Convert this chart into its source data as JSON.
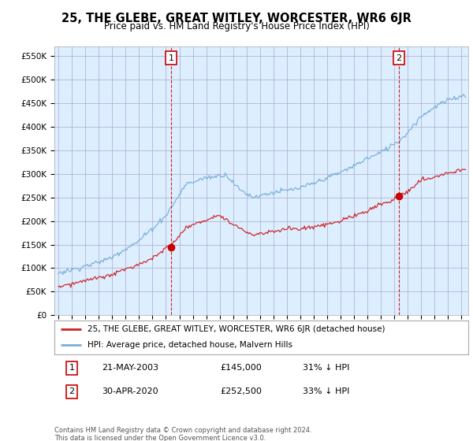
{
  "title": "25, THE GLEBE, GREAT WITLEY, WORCESTER, WR6 6JR",
  "subtitle": "Price paid vs. HM Land Registry's House Price Index (HPI)",
  "ylabel_ticks": [
    "£0",
    "£50K",
    "£100K",
    "£150K",
    "£200K",
    "£250K",
    "£300K",
    "£350K",
    "£400K",
    "£450K",
    "£500K",
    "£550K"
  ],
  "ytick_values": [
    0,
    50000,
    100000,
    150000,
    200000,
    250000,
    300000,
    350000,
    400000,
    450000,
    500000,
    550000
  ],
  "ylim": [
    0,
    570000
  ],
  "xlim_start": 1994.7,
  "xlim_end": 2025.5,
  "hpi_color": "#7aaed6",
  "price_color": "#cc2222",
  "chart_bg": "#ddeeff",
  "marker1_date": 2003.38,
  "marker1_value": 145000,
  "marker2_date": 2020.33,
  "marker2_value": 252500,
  "transaction1_date": "21-MAY-2003",
  "transaction1_price": "£145,000",
  "transaction1_note": "31% ↓ HPI",
  "transaction2_date": "30-APR-2020",
  "transaction2_price": "£252,500",
  "transaction2_note": "33% ↓ HPI",
  "legend_line1": "25, THE GLEBE, GREAT WITLEY, WORCESTER, WR6 6JR (detached house)",
  "legend_line2": "HPI: Average price, detached house, Malvern Hills",
  "footer": "Contains HM Land Registry data © Crown copyright and database right 2024.\nThis data is licensed under the Open Government Licence v3.0.",
  "background_color": "#ffffff",
  "grid_color": "#aaaacc"
}
